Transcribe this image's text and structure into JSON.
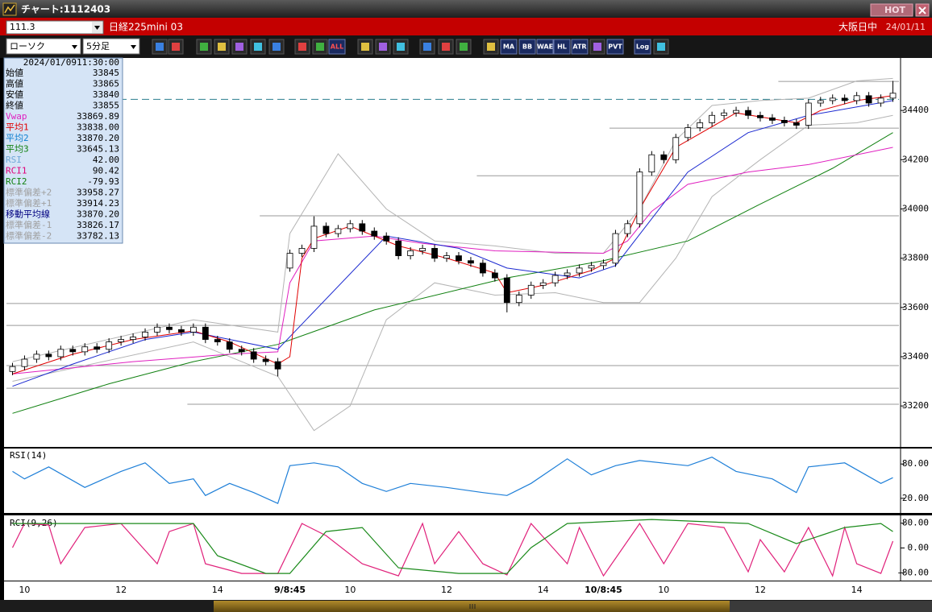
{
  "window": {
    "title": "チャート:1112403",
    "hot": "HOT"
  },
  "header": {
    "symbol_code": "111.3",
    "symbol_name": "日経225mini 03",
    "session": "大阪日中",
    "date": "24/01/11"
  },
  "toolbar": {
    "chart_type": "ローソク",
    "interval": "5分足",
    "buttons": [
      "ALL",
      "MA",
      "BB",
      "WAE",
      "HL",
      "ATR",
      "PVT",
      "Log"
    ]
  },
  "info_panel": {
    "date": "2024/01/09",
    "time": "11:30:00",
    "rows": [
      {
        "label": "始値",
        "value": "33845",
        "color": "#000000"
      },
      {
        "label": "高値",
        "value": "33865",
        "color": "#000000"
      },
      {
        "label": "安値",
        "value": "33840",
        "color": "#000000"
      },
      {
        "label": "終値",
        "value": "33855",
        "color": "#000000"
      },
      {
        "label": "Vwap",
        "value": "33869.89",
        "color": "#e020c0"
      },
      {
        "label": "平均1",
        "value": "33838.00",
        "color": "#e00000"
      },
      {
        "label": "平均2",
        "value": "33870.20",
        "color": "#1080d0"
      },
      {
        "label": "平均3",
        "value": "33645.13",
        "color": "#108010"
      },
      {
        "label": "RSI",
        "value": "42.00",
        "color": "#70a8d8"
      },
      {
        "label": "RCI1",
        "value": "90.42",
        "color": "#e0007a"
      },
      {
        "label": "RCI2",
        "value": "-79.93",
        "color": "#108010"
      },
      {
        "label": "標準偏差+2",
        "value": "33958.27",
        "color": "#a0a0a0"
      },
      {
        "label": "標準偏差+1",
        "value": "33914.23",
        "color": "#a0a0a0"
      },
      {
        "label": "移動平均線",
        "value": "33870.20",
        "color": "#000080"
      },
      {
        "label": "標準偏差-1",
        "value": "33826.17",
        "color": "#a0a0a0"
      },
      {
        "label": "標準偏差-2",
        "value": "33782.13",
        "color": "#a0a0a0"
      }
    ]
  },
  "chart_data": [
    {
      "type": "candlestick",
      "categories": [
        null,
        "10",
        null,
        null,
        null,
        null,
        null,
        null,
        null,
        "12",
        null,
        null,
        null,
        null,
        null,
        null,
        null,
        "14",
        null,
        null,
        null,
        null,
        null,
        "9/8:45",
        null,
        null,
        null,
        null,
        "10",
        null,
        null,
        null,
        null,
        null,
        null,
        null,
        "12",
        null,
        null,
        null,
        null,
        null,
        null,
        null,
        "14",
        null,
        null,
        null,
        null,
        "10/8:45",
        null,
        null,
        null,
        null,
        "10",
        null,
        null,
        null,
        null,
        null,
        null,
        null,
        "12",
        null,
        null,
        null,
        null,
        null,
        null,
        null,
        "14",
        null,
        null,
        null
      ],
      "open": [
        33340,
        33360,
        33390,
        33410,
        33400,
        33430,
        33420,
        33440,
        33430,
        33460,
        33470,
        33480,
        33500,
        33520,
        33510,
        33500,
        33520,
        33470,
        33460,
        33430,
        33420,
        33390,
        33380,
        33760,
        33820,
        33840,
        33930,
        33900,
        33920,
        33940,
        33910,
        33890,
        33870,
        33810,
        33830,
        33840,
        33800,
        33810,
        33790,
        33780,
        33740,
        33720,
        33620,
        33650,
        33690,
        33700,
        33730,
        33740,
        33760,
        33770,
        33780,
        33900,
        33940,
        34150,
        34220,
        34200,
        34290,
        34330,
        34350,
        34380,
        34390,
        34400,
        34380,
        34370,
        34360,
        34350,
        34340,
        34430,
        34440,
        34450,
        34440,
        34460,
        34430,
        34450
      ],
      "high": [
        33375,
        33405,
        33425,
        33425,
        33445,
        33445,
        33455,
        33455,
        33475,
        33485,
        33495,
        33515,
        33535,
        33535,
        33525,
        33535,
        33535,
        33485,
        33475,
        33445,
        33435,
        33405,
        33395,
        33835,
        33855,
        33970,
        33945,
        33935,
        33955,
        33955,
        33925,
        33905,
        33885,
        33845,
        33855,
        33855,
        33825,
        33825,
        33805,
        33795,
        33755,
        33735,
        33665,
        33705,
        33715,
        33745,
        33755,
        33775,
        33785,
        33795,
        33915,
        33955,
        34165,
        34235,
        34235,
        34305,
        34345,
        34365,
        34395,
        34405,
        34415,
        34415,
        34395,
        34385,
        34375,
        34365,
        34445,
        34455,
        34465,
        34465,
        34475,
        34475,
        34465,
        34520
      ],
      "low": [
        33325,
        33345,
        33375,
        33385,
        33385,
        33405,
        33405,
        33415,
        33415,
        33445,
        33455,
        33465,
        33485,
        33495,
        33485,
        33485,
        33455,
        33445,
        33415,
        33405,
        33375,
        33365,
        33320,
        33745,
        33805,
        33825,
        33885,
        33885,
        33905,
        33895,
        33875,
        33855,
        33795,
        33795,
        33815,
        33785,
        33785,
        33775,
        33765,
        33725,
        33705,
        33580,
        33605,
        33635,
        33675,
        33685,
        33715,
        33725,
        33745,
        33755,
        33765,
        33885,
        33925,
        34135,
        34185,
        34185,
        34275,
        34315,
        34335,
        34365,
        34375,
        34365,
        34355,
        34345,
        34335,
        34325,
        34325,
        34415,
        34425,
        34425,
        34425,
        34415,
        34415,
        34435
      ],
      "close": [
        33360,
        33390,
        33410,
        33400,
        33430,
        33420,
        33440,
        33430,
        33460,
        33470,
        33480,
        33500,
        33520,
        33510,
        33500,
        33520,
        33470,
        33460,
        33430,
        33420,
        33390,
        33380,
        33350,
        33820,
        33840,
        33930,
        33900,
        33920,
        33940,
        33910,
        33890,
        33870,
        33810,
        33830,
        33840,
        33800,
        33810,
        33790,
        33780,
        33740,
        33720,
        33620,
        33650,
        33690,
        33700,
        33730,
        33740,
        33760,
        33770,
        33780,
        33900,
        33940,
        34150,
        34220,
        34200,
        34290,
        34330,
        34350,
        34380,
        34390,
        34400,
        34380,
        34370,
        34360,
        34350,
        34340,
        34430,
        34440,
        34450,
        34440,
        34460,
        34430,
        34450,
        34470
      ],
      "up_color": "#ffffff",
      "down_color": "#000000",
      "ylim": [
        33050,
        34600
      ],
      "yticks": [
        34400,
        34200,
        34000,
        33800,
        33600,
        33400,
        33200
      ],
      "levels": [
        {
          "value": 34518,
          "start": 64
        },
        {
          "value": 34328,
          "start": 50
        },
        {
          "value": 34135,
          "start": 39
        },
        {
          "value": 33972,
          "start": 21
        },
        {
          "value": 33616,
          "start": 0
        },
        {
          "value": 33527,
          "start": 0
        },
        {
          "value": 33364,
          "start": 0
        },
        {
          "value": 33272,
          "start": 0
        },
        {
          "value": 33207,
          "start": 15
        }
      ],
      "dashed_level": 34445,
      "bands": [
        {
          "color": "#b4b4b4",
          "x": [
            0,
            15,
            22,
            23,
            27,
            31,
            35,
            40,
            45,
            49,
            52,
            55,
            58,
            62,
            66,
            70,
            73
          ],
          "values": [
            33380,
            33550,
            33500,
            33900,
            34224,
            34000,
            33870,
            33850,
            33820,
            33820,
            34000,
            34280,
            34420,
            34440,
            34450,
            34520,
            34530
          ]
        },
        {
          "color": "#b4b4b4",
          "x": [
            0,
            15,
            22,
            25,
            28,
            31,
            35,
            40,
            45,
            49,
            52,
            55,
            58,
            62,
            66,
            70,
            73
          ],
          "values": [
            33300,
            33460,
            33320,
            33100,
            33200,
            33550,
            33700,
            33650,
            33660,
            33620,
            33620,
            33800,
            34050,
            34200,
            34340,
            34350,
            34380
          ]
        }
      ],
      "lines": [
        {
          "color": "#108010",
          "x": [
            0,
            8,
            15,
            22,
            30,
            41,
            49,
            56,
            62,
            68,
            73
          ],
          "values": [
            33170,
            33290,
            33380,
            33450,
            33590,
            33720,
            33790,
            33870,
            34020,
            34165,
            34310
          ]
        },
        {
          "color": "#e020c0",
          "x": [
            0,
            10,
            18,
            22,
            23,
            25,
            30,
            34,
            40,
            49,
            51,
            53,
            56,
            61,
            66,
            73
          ],
          "values": [
            33330,
            33380,
            33410,
            33420,
            33700,
            33870,
            33890,
            33860,
            33830,
            33820,
            33870,
            33990,
            34100,
            34150,
            34180,
            34250
          ]
        },
        {
          "color": "#1a28d0",
          "x": [
            0,
            5,
            11,
            15,
            22,
            31,
            37,
            41,
            47,
            50,
            53,
            56,
            61,
            66,
            73
          ],
          "values": [
            33280,
            33370,
            33470,
            33500,
            33430,
            33890,
            33840,
            33760,
            33720,
            33770,
            33960,
            34150,
            34310,
            34380,
            34440
          ]
        },
        {
          "color": "#e00000",
          "x": [
            0,
            5,
            10,
            15,
            18,
            22,
            23,
            24,
            25,
            28,
            32,
            36,
            40,
            41,
            44,
            48,
            50,
            52,
            55,
            60,
            65,
            67,
            70,
            73
          ],
          "values": [
            33330,
            33410,
            33470,
            33505,
            33460,
            33370,
            33400,
            33800,
            33880,
            33930,
            33850,
            33800,
            33740,
            33660,
            33690,
            33750,
            33800,
            34000,
            34250,
            34390,
            34350,
            34400,
            34440,
            34460
          ]
        }
      ]
    },
    {
      "type": "line",
      "title": "RSI(14)",
      "ylim": [
        0,
        100
      ],
      "yticks": [
        {
          "value": 80,
          "label": "80.00"
        },
        {
          "value": 20,
          "label": "20.00"
        }
      ],
      "color": "#1e7fd8",
      "x": [
        0,
        1,
        3,
        6,
        9,
        11,
        13,
        15,
        16,
        18,
        20,
        22,
        23,
        25,
        27,
        29,
        31,
        33,
        36,
        39,
        41,
        43,
        46,
        48,
        50,
        52,
        56,
        58,
        60,
        63,
        65,
        66,
        69,
        72,
        73
      ],
      "values": [
        67,
        54,
        75,
        39,
        67,
        82,
        46,
        54,
        25,
        46,
        30,
        11,
        77,
        82,
        75,
        46,
        32,
        46,
        39,
        30,
        25,
        46,
        89,
        61,
        77,
        86,
        77,
        92,
        67,
        54,
        30,
        75,
        82,
        46,
        56
      ]
    },
    {
      "type": "line",
      "title": "RCI(9,26)",
      "ylim": [
        -100,
        100
      ],
      "yticks": [
        {
          "value": 80,
          "label": "80.00"
        },
        {
          "value": 0,
          "label": "0.00"
        },
        {
          "value": -80,
          "label": "-80.00"
        }
      ],
      "series": [
        {
          "color": "#e0207a",
          "x": [
            0,
            1,
            3,
            4,
            6,
            9,
            12,
            13,
            15,
            16,
            19,
            22,
            24,
            26,
            29,
            32,
            34,
            35,
            37,
            39,
            41,
            43,
            46,
            47,
            49,
            52,
            54,
            56,
            59,
            61,
            62,
            64,
            66,
            68,
            69,
            70,
            72,
            73
          ],
          "values": [
            1,
            79,
            74,
            -51,
            66,
            79,
            -51,
            53,
            79,
            -51,
            -82,
            -82,
            79,
            40,
            -51,
            -90,
            79,
            -51,
            53,
            -51,
            -87,
            79,
            -51,
            66,
            -90,
            79,
            -51,
            79,
            66,
            -77,
            27,
            -77,
            66,
            -90,
            66,
            -51,
            -82,
            22
          ]
        },
        {
          "color": "#1a8a1a",
          "x": [
            0,
            15,
            17,
            21,
            23,
            26,
            29,
            32,
            37,
            41,
            43,
            46,
            53,
            61,
            65,
            66,
            69,
            72,
            73
          ],
          "values": [
            79,
            79,
            -25,
            -82,
            -82,
            53,
            66,
            -64,
            -82,
            -82,
            1,
            79,
            92,
            79,
            14,
            27,
            66,
            79,
            53
          ]
        }
      ]
    }
  ]
}
